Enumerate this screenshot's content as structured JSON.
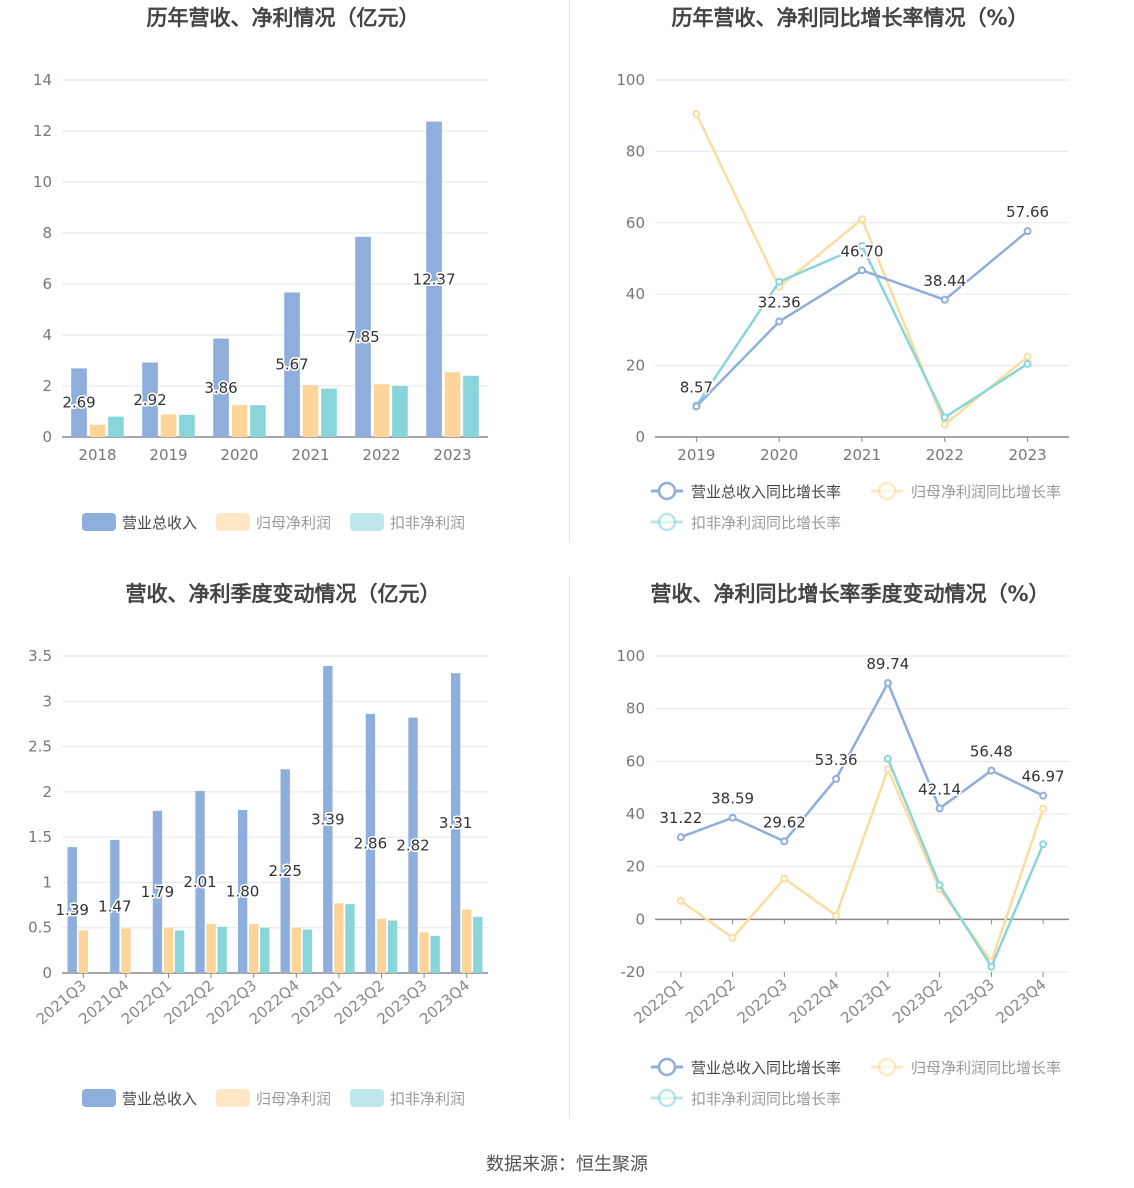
{
  "source": "数据来源：恒生聚源",
  "chart_data": [
    {
      "id": "annual-bar",
      "type": "bar",
      "title": "历年营收、净利情况（亿元）",
      "categories": [
        "2018",
        "2019",
        "2020",
        "2021",
        "2022",
        "2023"
      ],
      "ylim": [
        0,
        14
      ],
      "yticks": [
        0,
        2,
        4,
        6,
        8,
        10,
        12,
        14
      ],
      "series": [
        {
          "name": "营业总收入",
          "color": "#8eaedb",
          "values": [
            2.69,
            2.92,
            3.86,
            5.67,
            7.85,
            12.37
          ],
          "labels": [
            "2.69",
            "2.92",
            "3.86",
            "5.67",
            "7.85",
            "12.37"
          ]
        },
        {
          "name": "归母净利润",
          "color": "#fdd59b",
          "values": [
            0.48,
            0.89,
            1.25,
            2.03,
            2.07,
            2.54
          ]
        },
        {
          "name": "扣非净利润",
          "color": "#88d6d9",
          "values": [
            0.8,
            0.87,
            1.25,
            1.9,
            2.0,
            2.4
          ]
        }
      ]
    },
    {
      "id": "annual-line",
      "type": "line",
      "title": "历年营收、净利同比增长率情况（%）",
      "categories": [
        "2019",
        "2020",
        "2021",
        "2022",
        "2023"
      ],
      "ylim": [
        0,
        100
      ],
      "yticks": [
        0,
        20,
        40,
        60,
        80,
        100
      ],
      "series": [
        {
          "name": "营业总收入同比增长率",
          "color": "#8eaedb",
          "values": [
            8.57,
            32.36,
            46.7,
            38.44,
            57.66
          ],
          "labels": [
            "8.57",
            "32.36",
            "46.70",
            "38.44",
            "57.66"
          ]
        },
        {
          "name": "归母净利润同比增长率",
          "color": "#fddc9f",
          "values": [
            90.5,
            42.0,
            61.0,
            3.5,
            22.5
          ]
        },
        {
          "name": "扣非净利润同比增长率",
          "color": "#88d6d9",
          "values": [
            8.8,
            43.5,
            53.5,
            5.5,
            20.5
          ]
        }
      ]
    },
    {
      "id": "quarter-bar",
      "type": "bar",
      "title": "营收、净利季度变动情况（亿元）",
      "categories": [
        "2021Q3",
        "2021Q4",
        "2022Q1",
        "2022Q2",
        "2022Q3",
        "2022Q4",
        "2023Q1",
        "2023Q2",
        "2023Q3",
        "2023Q4"
      ],
      "ylim": [
        0,
        3.5
      ],
      "yticks": [
        0,
        0.5,
        1,
        1.5,
        2,
        2.5,
        3,
        3.5
      ],
      "ytick_labels": [
        "0",
        "0.5",
        "1",
        "1.5",
        "2",
        "2.5",
        "3",
        "3.5"
      ],
      "series": [
        {
          "name": "营业总收入",
          "color": "#8eaedb",
          "values": [
            1.39,
            1.47,
            1.79,
            2.01,
            1.8,
            2.25,
            3.39,
            2.86,
            2.82,
            3.31
          ],
          "labels": [
            "1.39",
            "1.47",
            "1.79",
            "2.01",
            "1.80",
            "2.25",
            "3.39",
            "2.86",
            "2.82",
            "3.31"
          ]
        },
        {
          "name": "归母净利润",
          "color": "#fdd59b",
          "values": [
            0.47,
            0.49,
            0.5,
            0.54,
            0.54,
            0.5,
            0.77,
            0.6,
            0.45,
            0.7
          ]
        },
        {
          "name": "扣非净利润",
          "color": "#88d6d9",
          "values": [
            null,
            null,
            0.47,
            0.51,
            0.5,
            0.48,
            0.76,
            0.58,
            0.41,
            0.62
          ]
        }
      ]
    },
    {
      "id": "quarter-line",
      "type": "line",
      "title": "营收、净利同比增长率季度变动情况（%）",
      "categories": [
        "2022Q1",
        "2022Q2",
        "2022Q3",
        "2022Q4",
        "2023Q1",
        "2023Q2",
        "2023Q3",
        "2023Q4"
      ],
      "ylim": [
        -20,
        100
      ],
      "yticks": [
        -20,
        0,
        20,
        40,
        60,
        80,
        100
      ],
      "series": [
        {
          "name": "营业总收入同比增长率",
          "color": "#8eaedb",
          "values": [
            31.22,
            38.59,
            29.62,
            53.36,
            89.74,
            42.14,
            56.48,
            46.97
          ],
          "labels": [
            "31.22",
            "38.59",
            "29.62",
            "53.36",
            "89.74",
            "42.14",
            "56.48",
            "46.97"
          ]
        },
        {
          "name": "归母净利润同比增长率",
          "color": "#fddc9f",
          "values": [
            7.0,
            -7.0,
            15.5,
            1.5,
            57.0,
            11.5,
            -16.0,
            42.0
          ]
        },
        {
          "name": "扣非净利润同比增长率",
          "color": "#88d6d9",
          "values": [
            null,
            null,
            null,
            null,
            61.0,
            13.0,
            -18.0,
            28.5
          ]
        }
      ]
    }
  ]
}
